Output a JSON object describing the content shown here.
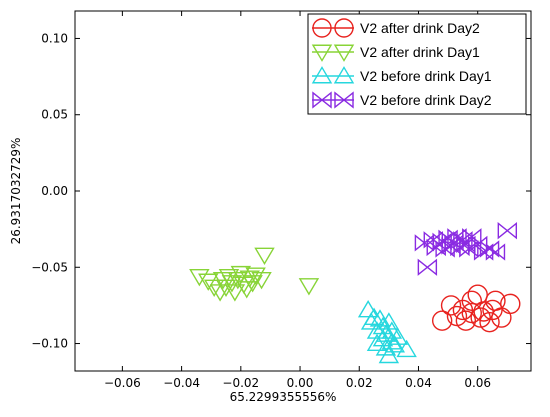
{
  "chart_data": {
    "type": "scatter",
    "xlabel": "65.2299355556%",
    "ylabel": "26.9317032729%",
    "xlim": [
      -0.076,
      0.078
    ],
    "ylim": [
      -0.118,
      0.118
    ],
    "x_ticks": [
      -0.06,
      -0.04,
      -0.02,
      0.0,
      0.02,
      0.04,
      0.06
    ],
    "x_tick_labels": [
      "−0.06",
      "−0.04",
      "−0.02",
      "0.00",
      "0.02",
      "0.04",
      "0.06"
    ],
    "y_ticks": [
      0.1,
      0.05,
      0.0,
      -0.05,
      -0.1
    ],
    "y_tick_labels": [
      "0.10",
      "0.05",
      "0.00",
      "−0.05",
      "−0.10"
    ],
    "grid": false,
    "legend_position": "top-right",
    "series": [
      {
        "name": "V2 after drink Day2",
        "marker": "circle",
        "color": "#e8231f",
        "points": [
          [
            0.048,
            -0.085
          ],
          [
            0.051,
            -0.075
          ],
          [
            0.053,
            -0.082
          ],
          [
            0.055,
            -0.078
          ],
          [
            0.056,
            -0.085
          ],
          [
            0.058,
            -0.08
          ],
          [
            0.058,
            -0.072
          ],
          [
            0.06,
            -0.068
          ],
          [
            0.061,
            -0.083
          ],
          [
            0.062,
            -0.079
          ],
          [
            0.064,
            -0.086
          ],
          [
            0.065,
            -0.078
          ],
          [
            0.066,
            -0.072
          ],
          [
            0.068,
            -0.083
          ],
          [
            0.071,
            -0.074
          ]
        ]
      },
      {
        "name": "V2 after drink Day1",
        "marker": "triangle-down",
        "color": "#88d437",
        "points": [
          [
            -0.034,
            -0.056
          ],
          [
            -0.031,
            -0.059
          ],
          [
            -0.029,
            -0.063
          ],
          [
            -0.027,
            -0.066
          ],
          [
            -0.026,
            -0.058
          ],
          [
            -0.025,
            -0.063
          ],
          [
            -0.024,
            -0.056
          ],
          [
            -0.023,
            -0.06
          ],
          [
            -0.022,
            -0.066
          ],
          [
            -0.021,
            -0.058
          ],
          [
            -0.02,
            -0.054
          ],
          [
            -0.019,
            -0.061
          ],
          [
            -0.018,
            -0.064
          ],
          [
            -0.017,
            -0.057
          ],
          [
            -0.016,
            -0.06
          ],
          [
            -0.015,
            -0.055
          ],
          [
            -0.013,
            -0.058
          ],
          [
            -0.012,
            -0.042
          ],
          [
            0.003,
            -0.062
          ]
        ]
      },
      {
        "name": "V2 before drink Day1",
        "marker": "triangle-up",
        "color": "#26d7de",
        "points": [
          [
            0.023,
            -0.078
          ],
          [
            0.024,
            -0.086
          ],
          [
            0.025,
            -0.083
          ],
          [
            0.026,
            -0.092
          ],
          [
            0.026,
            -0.1
          ],
          [
            0.027,
            -0.084
          ],
          [
            0.028,
            -0.089
          ],
          [
            0.028,
            -0.097
          ],
          [
            0.029,
            -0.103
          ],
          [
            0.029,
            -0.094
          ],
          [
            0.03,
            -0.086
          ],
          [
            0.03,
            -0.108
          ],
          [
            0.031,
            -0.099
          ],
          [
            0.031,
            -0.092
          ],
          [
            0.032,
            -0.101
          ],
          [
            0.033,
            -0.096
          ],
          [
            0.036,
            -0.104
          ]
        ]
      },
      {
        "name": "V2 before drink Day2",
        "marker": "bowtie",
        "color": "#8a2be2",
        "points": [
          [
            0.042,
            -0.034
          ],
          [
            0.043,
            -0.05
          ],
          [
            0.045,
            -0.032
          ],
          [
            0.046,
            -0.037
          ],
          [
            0.048,
            -0.033
          ],
          [
            0.049,
            -0.038
          ],
          [
            0.05,
            -0.031
          ],
          [
            0.051,
            -0.036
          ],
          [
            0.052,
            -0.034
          ],
          [
            0.053,
            -0.03
          ],
          [
            0.054,
            -0.037
          ],
          [
            0.055,
            -0.032
          ],
          [
            0.056,
            -0.035
          ],
          [
            0.057,
            -0.038
          ],
          [
            0.058,
            -0.03
          ],
          [
            0.06,
            -0.035
          ],
          [
            0.062,
            -0.04
          ],
          [
            0.064,
            -0.038
          ],
          [
            0.066,
            -0.04
          ],
          [
            0.07,
            -0.026
          ]
        ]
      }
    ]
  }
}
